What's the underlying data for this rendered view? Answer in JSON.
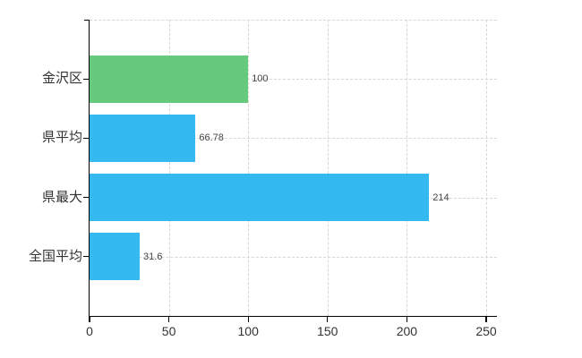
{
  "chart_data": {
    "type": "bar",
    "orientation": "horizontal",
    "title": "",
    "xlabel": "",
    "ylabel": "",
    "categories": [
      "金沢区",
      "県平均",
      "県最大",
      "全国平均"
    ],
    "values": [
      100,
      66.78,
      214,
      31.6
    ],
    "value_labels": [
      "100",
      "66.78",
      "214",
      "31.6"
    ],
    "bar_colors": [
      "#66c97e",
      "#35b9f1",
      "#35b9f1",
      "#35b9f1"
    ],
    "xlim": [
      0,
      250
    ],
    "x_ticks": [
      0,
      50,
      100,
      150,
      200,
      250
    ],
    "x_tick_labels": [
      "0",
      "50",
      "100",
      "150",
      "200",
      "250"
    ],
    "grid": "on",
    "grid_style": "dashed",
    "legend": "none",
    "colors": {
      "grid": "#d6d6d6",
      "axis": "#000000",
      "category_label": "#333333",
      "tick_label": "#333333",
      "value_label": "#444444",
      "background": "#ffffff"
    }
  }
}
